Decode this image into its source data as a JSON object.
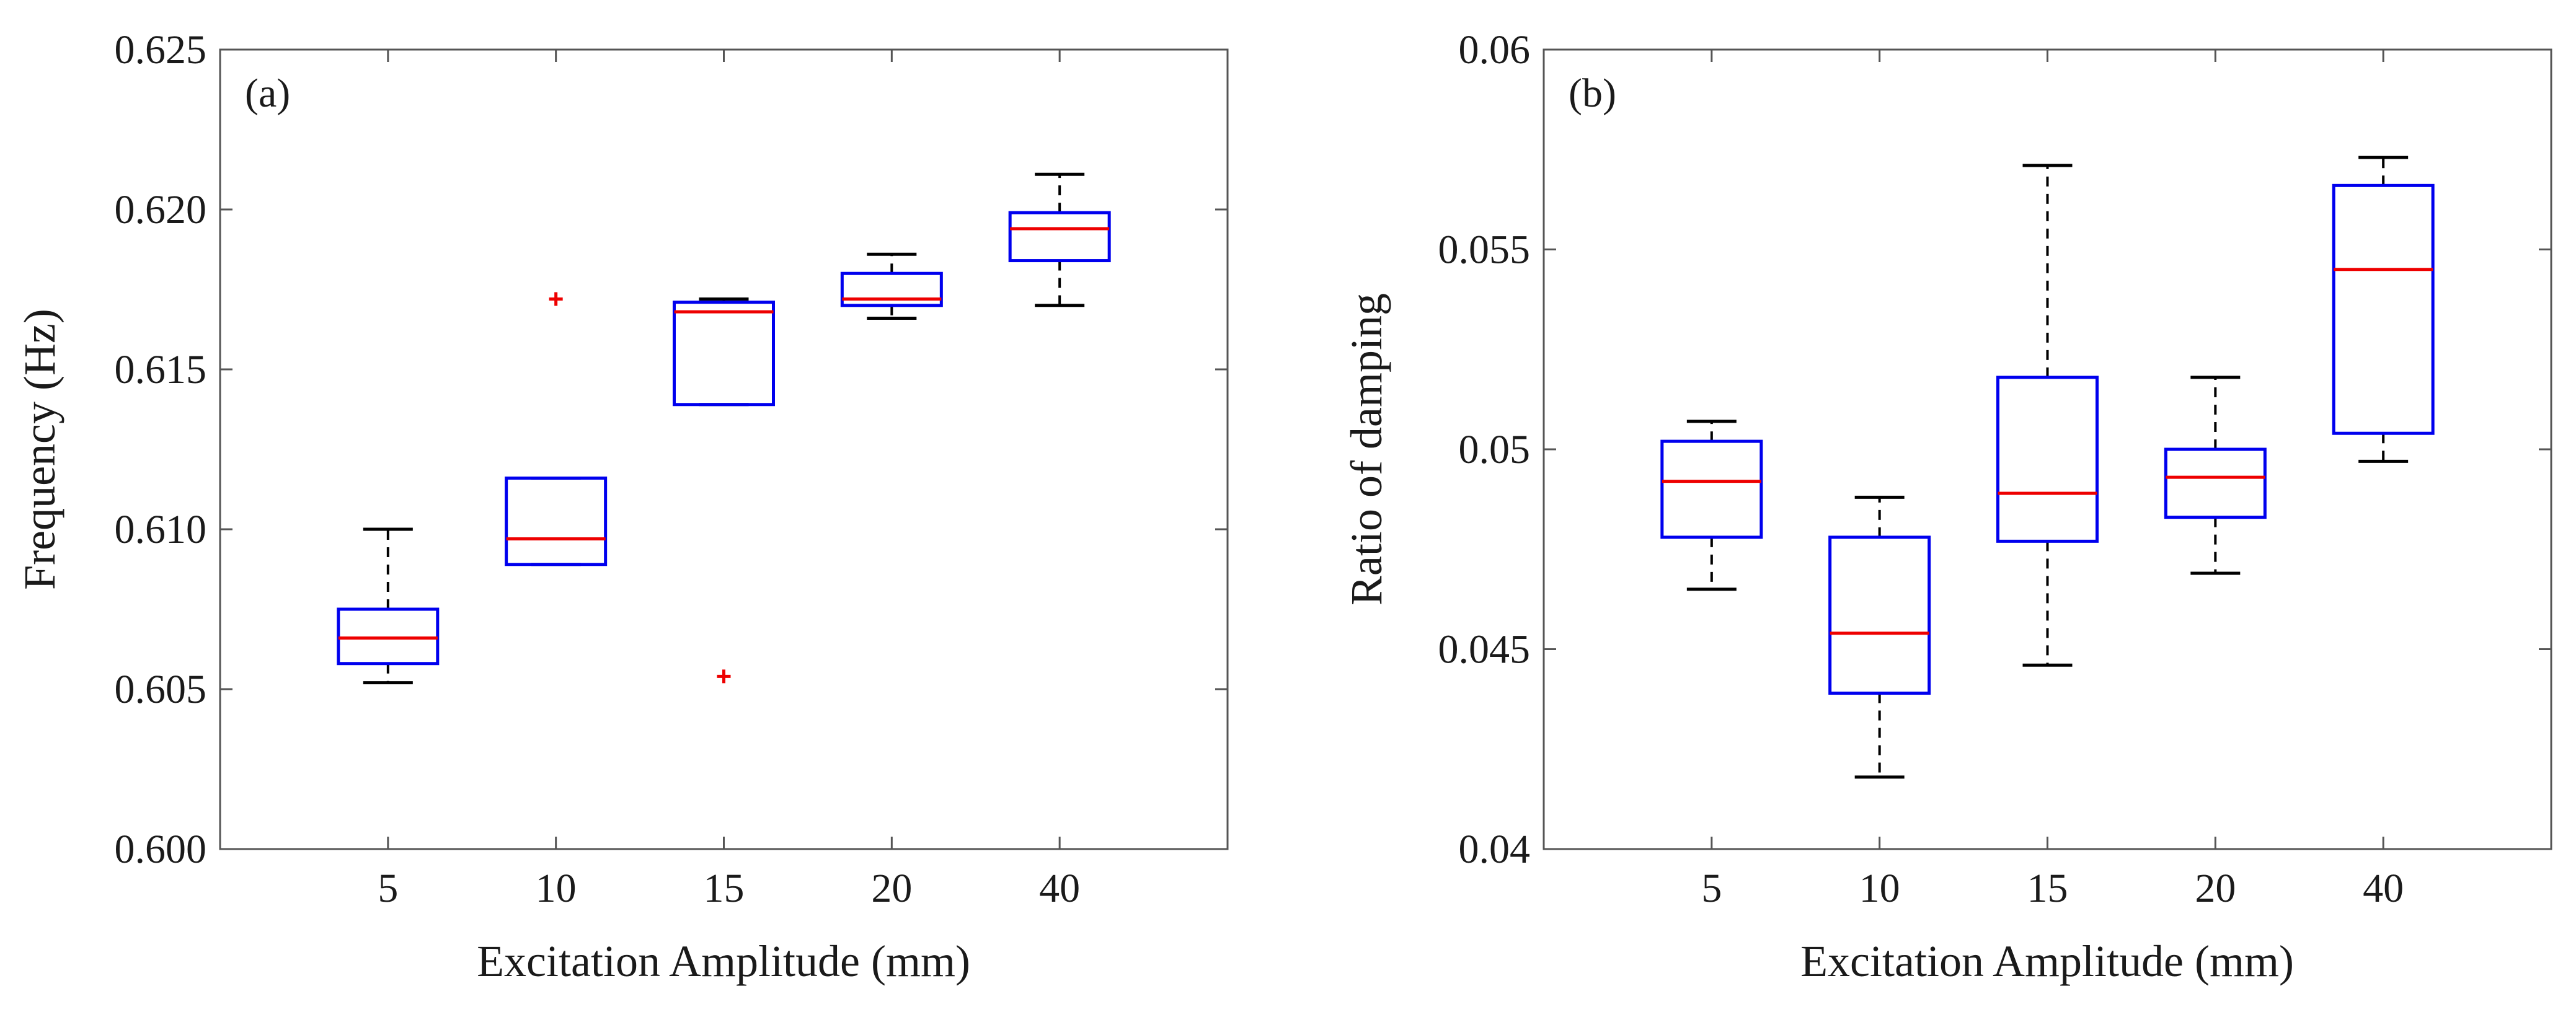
{
  "chart_data": [
    {
      "type": "box",
      "panel_label": "(a)",
      "title": "",
      "xlabel": "Excitation Amplitude (mm)",
      "ylabel": "Frequency (Hz)",
      "ylim": [
        0.6,
        0.625
      ],
      "yticks": [
        "0.600",
        "0.605",
        "0.610",
        "0.615",
        "0.620",
        "0.625"
      ],
      "categories": [
        "5",
        "10",
        "15",
        "20",
        "40"
      ],
      "boxes": [
        {
          "category": "5",
          "whisker_low": 0.6052,
          "q1": 0.6058,
          "median": 0.6066,
          "q3": 0.6075,
          "whisker_high": 0.61,
          "outliers": []
        },
        {
          "category": "10",
          "whisker_low": 0.6089,
          "q1": 0.6089,
          "median": 0.6097,
          "q3": 0.6116,
          "whisker_high": 0.6116,
          "outliers": [
            0.6172
          ]
        },
        {
          "category": "15",
          "whisker_low": 0.6139,
          "q1": 0.6139,
          "median": 0.6168,
          "q3": 0.6171,
          "whisker_high": 0.6172,
          "outliers": [
            0.6054
          ]
        },
        {
          "category": "20",
          "whisker_low": 0.6166,
          "q1": 0.617,
          "median": 0.6172,
          "q3": 0.618,
          "whisker_high": 0.6186,
          "outliers": []
        },
        {
          "category": "40",
          "whisker_low": 0.617,
          "q1": 0.6184,
          "median": 0.6194,
          "q3": 0.6199,
          "whisker_high": 0.6211,
          "outliers": []
        }
      ],
      "colors": {
        "box": "#0000ee",
        "median": "#ee0000",
        "whisker": "#000000",
        "outlier": "#ee0000"
      }
    },
    {
      "type": "box",
      "panel_label": "(b)",
      "title": "",
      "xlabel": "Excitation Amplitude (mm)",
      "ylabel": "Ratio of damping",
      "ylim": [
        0.04,
        0.06
      ],
      "yticks": [
        "0.04",
        "0.045",
        "0.05",
        "0.055",
        "0.06"
      ],
      "categories": [
        "5",
        "10",
        "15",
        "20",
        "40"
      ],
      "boxes": [
        {
          "category": "5",
          "whisker_low": 0.0465,
          "q1": 0.0478,
          "median": 0.0492,
          "q3": 0.0502,
          "whisker_high": 0.0507,
          "outliers": []
        },
        {
          "category": "10",
          "whisker_low": 0.0418,
          "q1": 0.0439,
          "median": 0.0454,
          "q3": 0.0478,
          "whisker_high": 0.0488,
          "outliers": []
        },
        {
          "category": "15",
          "whisker_low": 0.0446,
          "q1": 0.0477,
          "median": 0.0489,
          "q3": 0.0518,
          "whisker_high": 0.0571,
          "outliers": []
        },
        {
          "category": "20",
          "whisker_low": 0.0469,
          "q1": 0.0483,
          "median": 0.0493,
          "q3": 0.05,
          "whisker_high": 0.0518,
          "outliers": []
        },
        {
          "category": "40",
          "whisker_low": 0.0497,
          "q1": 0.0504,
          "median": 0.0545,
          "q3": 0.0566,
          "whisker_high": 0.0573,
          "outliers": []
        }
      ],
      "colors": {
        "box": "#0000ee",
        "median": "#ee0000",
        "whisker": "#000000",
        "outlier": "#ee0000"
      }
    }
  ]
}
